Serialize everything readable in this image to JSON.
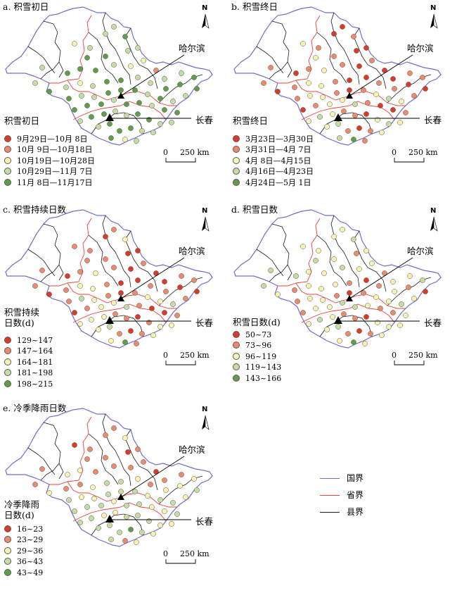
{
  "panels": [
    {
      "title": "a. 积雪初日",
      "legend_title": "积雪初日",
      "classes": [
        "9月29日—10月 8日",
        "10月 9日—10月18日",
        "10月19日—10月28日",
        "10月29日—11月 7日",
        "11月 8日—11月17日"
      ],
      "pattern": [
        2,
        3,
        3,
        3,
        3,
        4,
        4,
        4,
        3,
        3,
        2,
        3,
        4,
        4,
        4,
        3,
        2,
        1,
        3,
        3,
        4,
        4,
        3,
        2,
        3,
        4,
        4,
        3,
        3,
        4,
        4,
        4,
        4,
        3,
        3,
        4,
        4,
        4,
        3,
        4,
        3,
        3,
        4,
        4,
        4,
        3,
        4,
        4,
        3,
        4,
        4,
        3,
        4,
        4,
        3,
        3,
        4,
        4,
        3,
        3,
        3,
        4,
        4,
        4,
        3,
        3,
        4,
        2,
        3
      ]
    },
    {
      "title": "b. 积雪终日",
      "legend_title": "积雪终日",
      "classes": [
        "3月23日—3月30日",
        "3月31日—4月 7日",
        "4月 8日—4月15日",
        "4月16日—4月23日",
        "4月24日—5月 1日"
      ],
      "pattern": [
        2,
        1,
        1,
        0,
        0,
        1,
        2,
        1,
        0,
        0,
        1,
        1,
        0,
        1,
        2,
        1,
        0,
        0,
        0,
        1,
        1,
        0,
        1,
        2,
        2,
        1,
        0,
        0,
        1,
        1,
        0,
        0,
        1,
        2,
        2,
        1,
        0,
        1,
        2,
        3,
        2,
        1,
        0,
        1,
        2,
        2,
        3,
        1,
        0,
        0,
        1,
        2,
        3,
        2,
        1,
        1,
        0,
        2,
        3,
        2,
        2,
        3,
        1,
        0,
        1,
        2,
        3,
        4,
        1
      ]
    },
    {
      "title": "c. 积雪持续日数",
      "legend_title": "积雪持续\n日数(d)",
      "classes": [
        "129~147",
        "147~164",
        "164~181",
        "181~198",
        "198~215"
      ],
      "pattern": [
        1,
        1,
        1,
        0,
        1,
        2,
        1,
        1,
        0,
        0,
        1,
        1,
        0,
        1,
        2,
        1,
        0,
        0,
        0,
        1,
        1,
        0,
        1,
        2,
        2,
        1,
        0,
        0,
        1,
        1,
        0,
        0,
        1,
        3,
        2,
        1,
        0,
        1,
        2,
        2,
        3,
        1,
        0,
        1,
        2,
        2,
        3,
        1,
        0,
        0,
        1,
        2,
        2,
        2,
        1,
        1,
        0,
        1,
        2,
        2,
        2,
        3,
        1,
        0,
        1,
        2,
        2,
        4,
        1
      ]
    },
    {
      "title": "d. 积雪日数",
      "legend_title": "积雪日数(d)",
      "classes": [
        "50~73",
        "73~96",
        "96~119",
        "119~143",
        "143~166"
      ],
      "pattern": [
        2,
        2,
        3,
        2,
        2,
        3,
        3,
        2,
        1,
        2,
        2,
        3,
        3,
        2,
        2,
        3,
        2,
        1,
        2,
        2,
        3,
        2,
        1,
        2,
        2,
        2,
        1,
        0,
        1,
        2,
        1,
        0,
        1,
        2,
        2,
        1,
        0,
        1,
        2,
        2,
        3,
        2,
        1,
        2,
        2,
        3,
        3,
        2,
        1,
        1,
        2,
        2,
        3,
        2,
        1,
        1,
        0,
        2,
        2,
        2,
        2,
        3,
        1,
        0,
        1,
        2,
        2,
        4,
        2
      ]
    },
    {
      "title": "e. 冷季降雨日数",
      "legend_title": "冷季降雨\n日数(d)",
      "classes": [
        "16~23",
        "23~29",
        "29~36",
        "36~43",
        "43~49"
      ],
      "pattern": [
        0,
        1,
        1,
        1,
        1,
        2,
        1,
        1,
        0,
        1,
        1,
        1,
        2,
        2,
        1,
        1,
        1,
        0,
        1,
        1,
        2,
        2,
        1,
        1,
        2,
        3,
        3,
        2,
        1,
        2,
        2,
        3,
        3,
        2,
        2,
        3,
        3,
        3,
        2,
        3,
        3,
        2,
        3,
        3,
        3,
        2,
        3,
        3,
        2,
        2,
        3,
        3,
        3,
        2,
        2,
        3,
        3,
        3,
        2,
        2,
        3,
        3,
        3,
        4,
        3,
        2,
        3,
        1,
        2
      ]
    }
  ],
  "legend_colors": [
    "#d93b27",
    "#ec8a6e",
    "#faf3b2",
    "#c5dca3",
    "#5f9e47"
  ],
  "cities": {
    "harbin": "哈尔滨",
    "changchun": "长春"
  },
  "scale": {
    "label_zero": "0",
    "label_km": "250 km"
  },
  "north_label": "N",
  "boundary_legend": {
    "items": [
      {
        "label": "国界",
        "color": "#6f6fc9"
      },
      {
        "label": "省界",
        "color": "#e8433a"
      },
      {
        "label": "县界",
        "color": "#1a1a1a"
      }
    ]
  }
}
